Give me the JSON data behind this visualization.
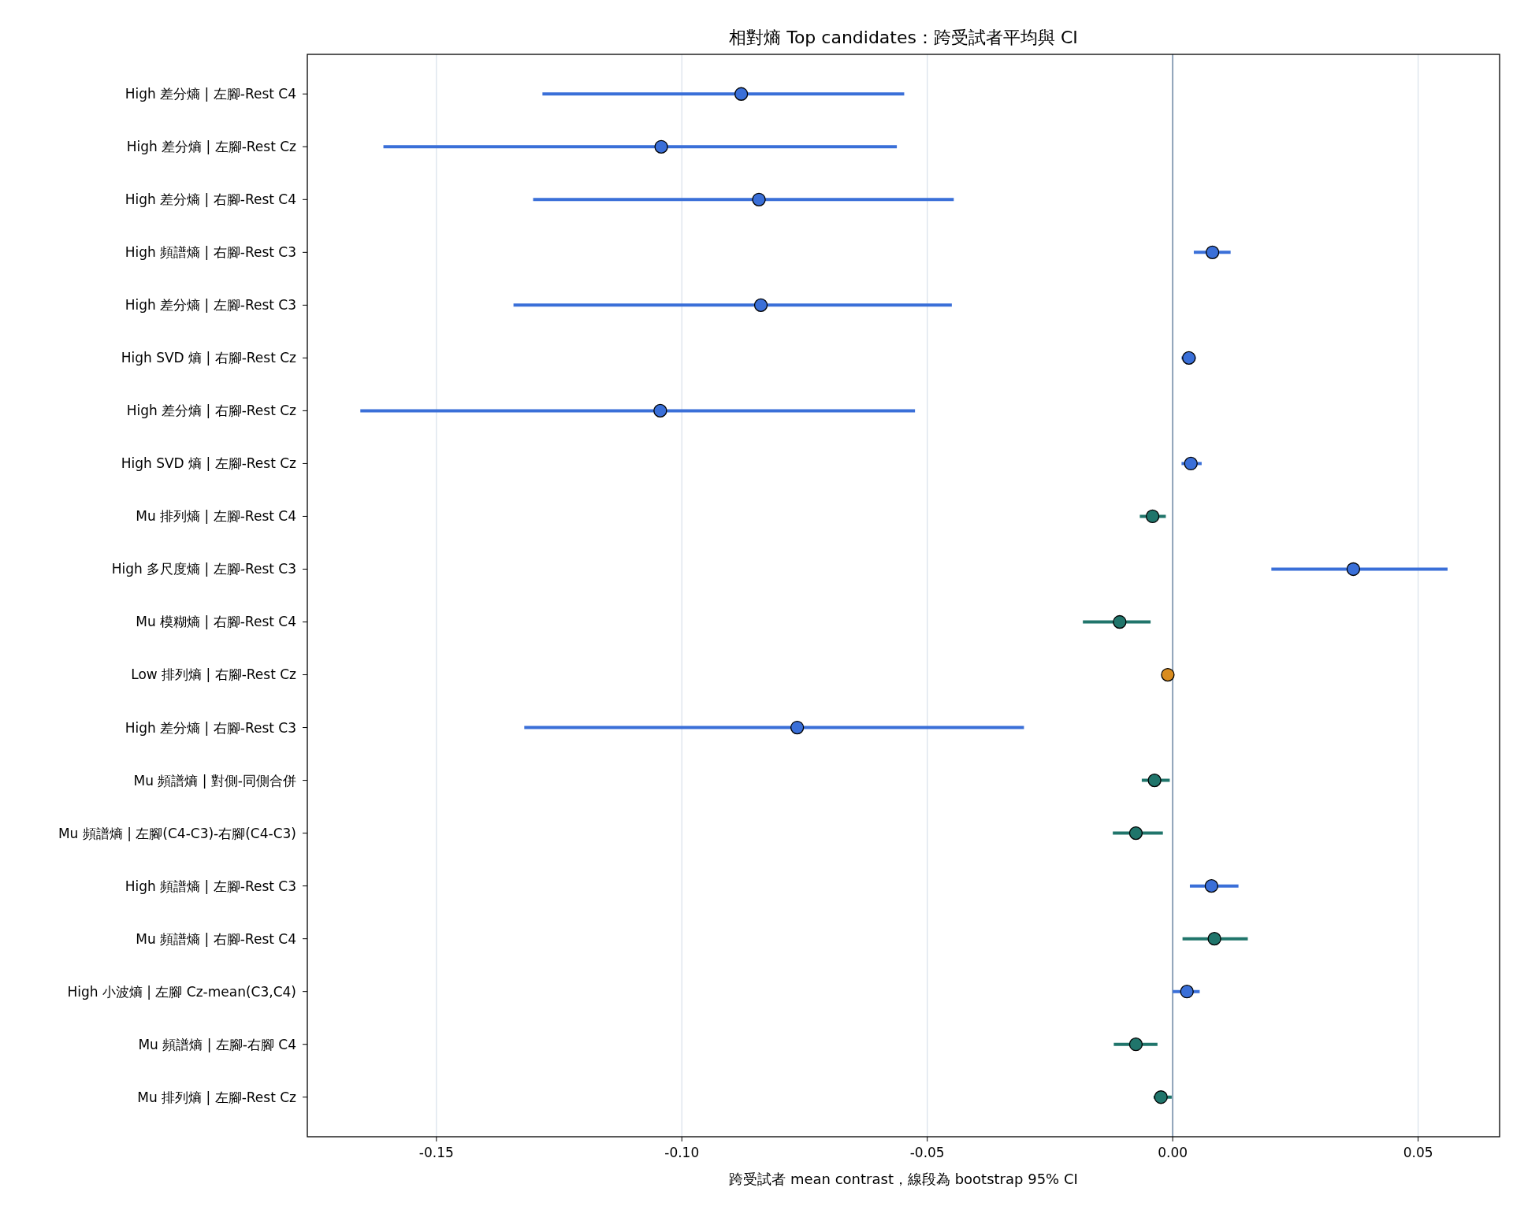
{
  "chart_data": {
    "type": "scatter",
    "orientation": "horizontal",
    "title": "相對熵 Top candidates：跨受試者平均與 CI",
    "xlabel": "跨受試者 mean contrast，線段為 bootstrap 95% CI",
    "categories": [
      "High 差分熵 | 左腳-Rest C4",
      "High 差分熵 | 左腳-Rest Cz",
      "High 差分熵 | 右腳-Rest C4",
      "High 頻譜熵 | 右腳-Rest C3",
      "High 差分熵 | 左腳-Rest C3",
      "High SVD 熵 | 右腳-Rest Cz",
      "High 差分熵 | 右腳-Rest Cz",
      "High SVD 熵 | 左腳-Rest Cz",
      "Mu 排列熵 | 左腳-Rest C4",
      "High 多尺度熵 | 左腳-Rest C3",
      "Mu 模糊熵 | 右腳-Rest C4",
      "Low 排列熵 | 右腳-Rest Cz",
      "High 差分熵 | 右腳-Rest C3",
      "Mu 頻譜熵 | 對側-同側合併",
      "Mu 頻譜熵 | 左腳(C4-C3)-右腳(C4-C3)",
      "High 頻譜熵 | 左腳-Rest C3",
      "Mu 頻譜熵 | 右腳-Rest C4",
      "High 小波熵 | 左腳 Cz-mean(C3,C4)",
      "Mu 頻譜熵 | 左腳-右腳 C4",
      "Mu 排列熵 | 左腳-Rest Cz"
    ],
    "values": [
      -0.0879,
      -0.1042,
      -0.0843,
      0.0081,
      -0.0839,
      0.0033,
      -0.1044,
      0.0037,
      -0.0041,
      0.0368,
      -0.0108,
      -0.001,
      -0.0765,
      -0.0037,
      -0.0075,
      0.0079,
      0.0085,
      0.0029,
      -0.0075,
      -0.0024
    ],
    "errors": [
      [
        -0.1284,
        -0.0547
      ],
      [
        -0.1608,
        -0.0562
      ],
      [
        -0.1303,
        -0.0446
      ],
      [
        0.0043,
        0.0118
      ],
      [
        -0.1343,
        -0.045
      ],
      [
        0.0018,
        0.0047
      ],
      [
        -0.1655,
        -0.0525
      ],
      [
        0.0018,
        0.0059
      ],
      [
        -0.0067,
        -0.0014
      ],
      [
        0.0201,
        0.056
      ],
      [
        -0.0183,
        -0.0045
      ],
      null,
      [
        -0.1321,
        -0.0303
      ],
      [
        -0.0063,
        -0.0006
      ],
      [
        -0.0122,
        -0.002
      ],
      [
        0.0035,
        0.0134
      ],
      [
        0.002,
        0.0153
      ],
      [
        0.0,
        0.0055
      ],
      [
        -0.012,
        -0.0031
      ],
      [
        -0.0039,
        -0.0002
      ]
    ],
    "colors": [
      "#3a6fd8",
      "#3a6fd8",
      "#3a6fd8",
      "#3a6fd8",
      "#3a6fd8",
      "#3a6fd8",
      "#3a6fd8",
      "#3a6fd8",
      "#20756b",
      "#3a6fd8",
      "#20756b",
      "#d98c1f",
      "#3a6fd8",
      "#20756b",
      "#20756b",
      "#3a6fd8",
      "#20756b",
      "#3a6fd8",
      "#20756b",
      "#20756b"
    ],
    "xlim": [
      -0.1763,
      0.0666
    ],
    "xticks": [
      {
        "value": -0.15,
        "label": "-0.15"
      },
      {
        "value": -0.1,
        "label": "-0.10"
      },
      {
        "value": -0.05,
        "label": "-0.05"
      },
      {
        "value": 0,
        "label": "0.00"
      },
      {
        "value": 0.05,
        "label": "0.05"
      }
    ],
    "grid": "x",
    "marker": "circle",
    "ref_lines": [
      {
        "axis": "x",
        "value": 0,
        "color": "#8499b2"
      }
    ]
  }
}
